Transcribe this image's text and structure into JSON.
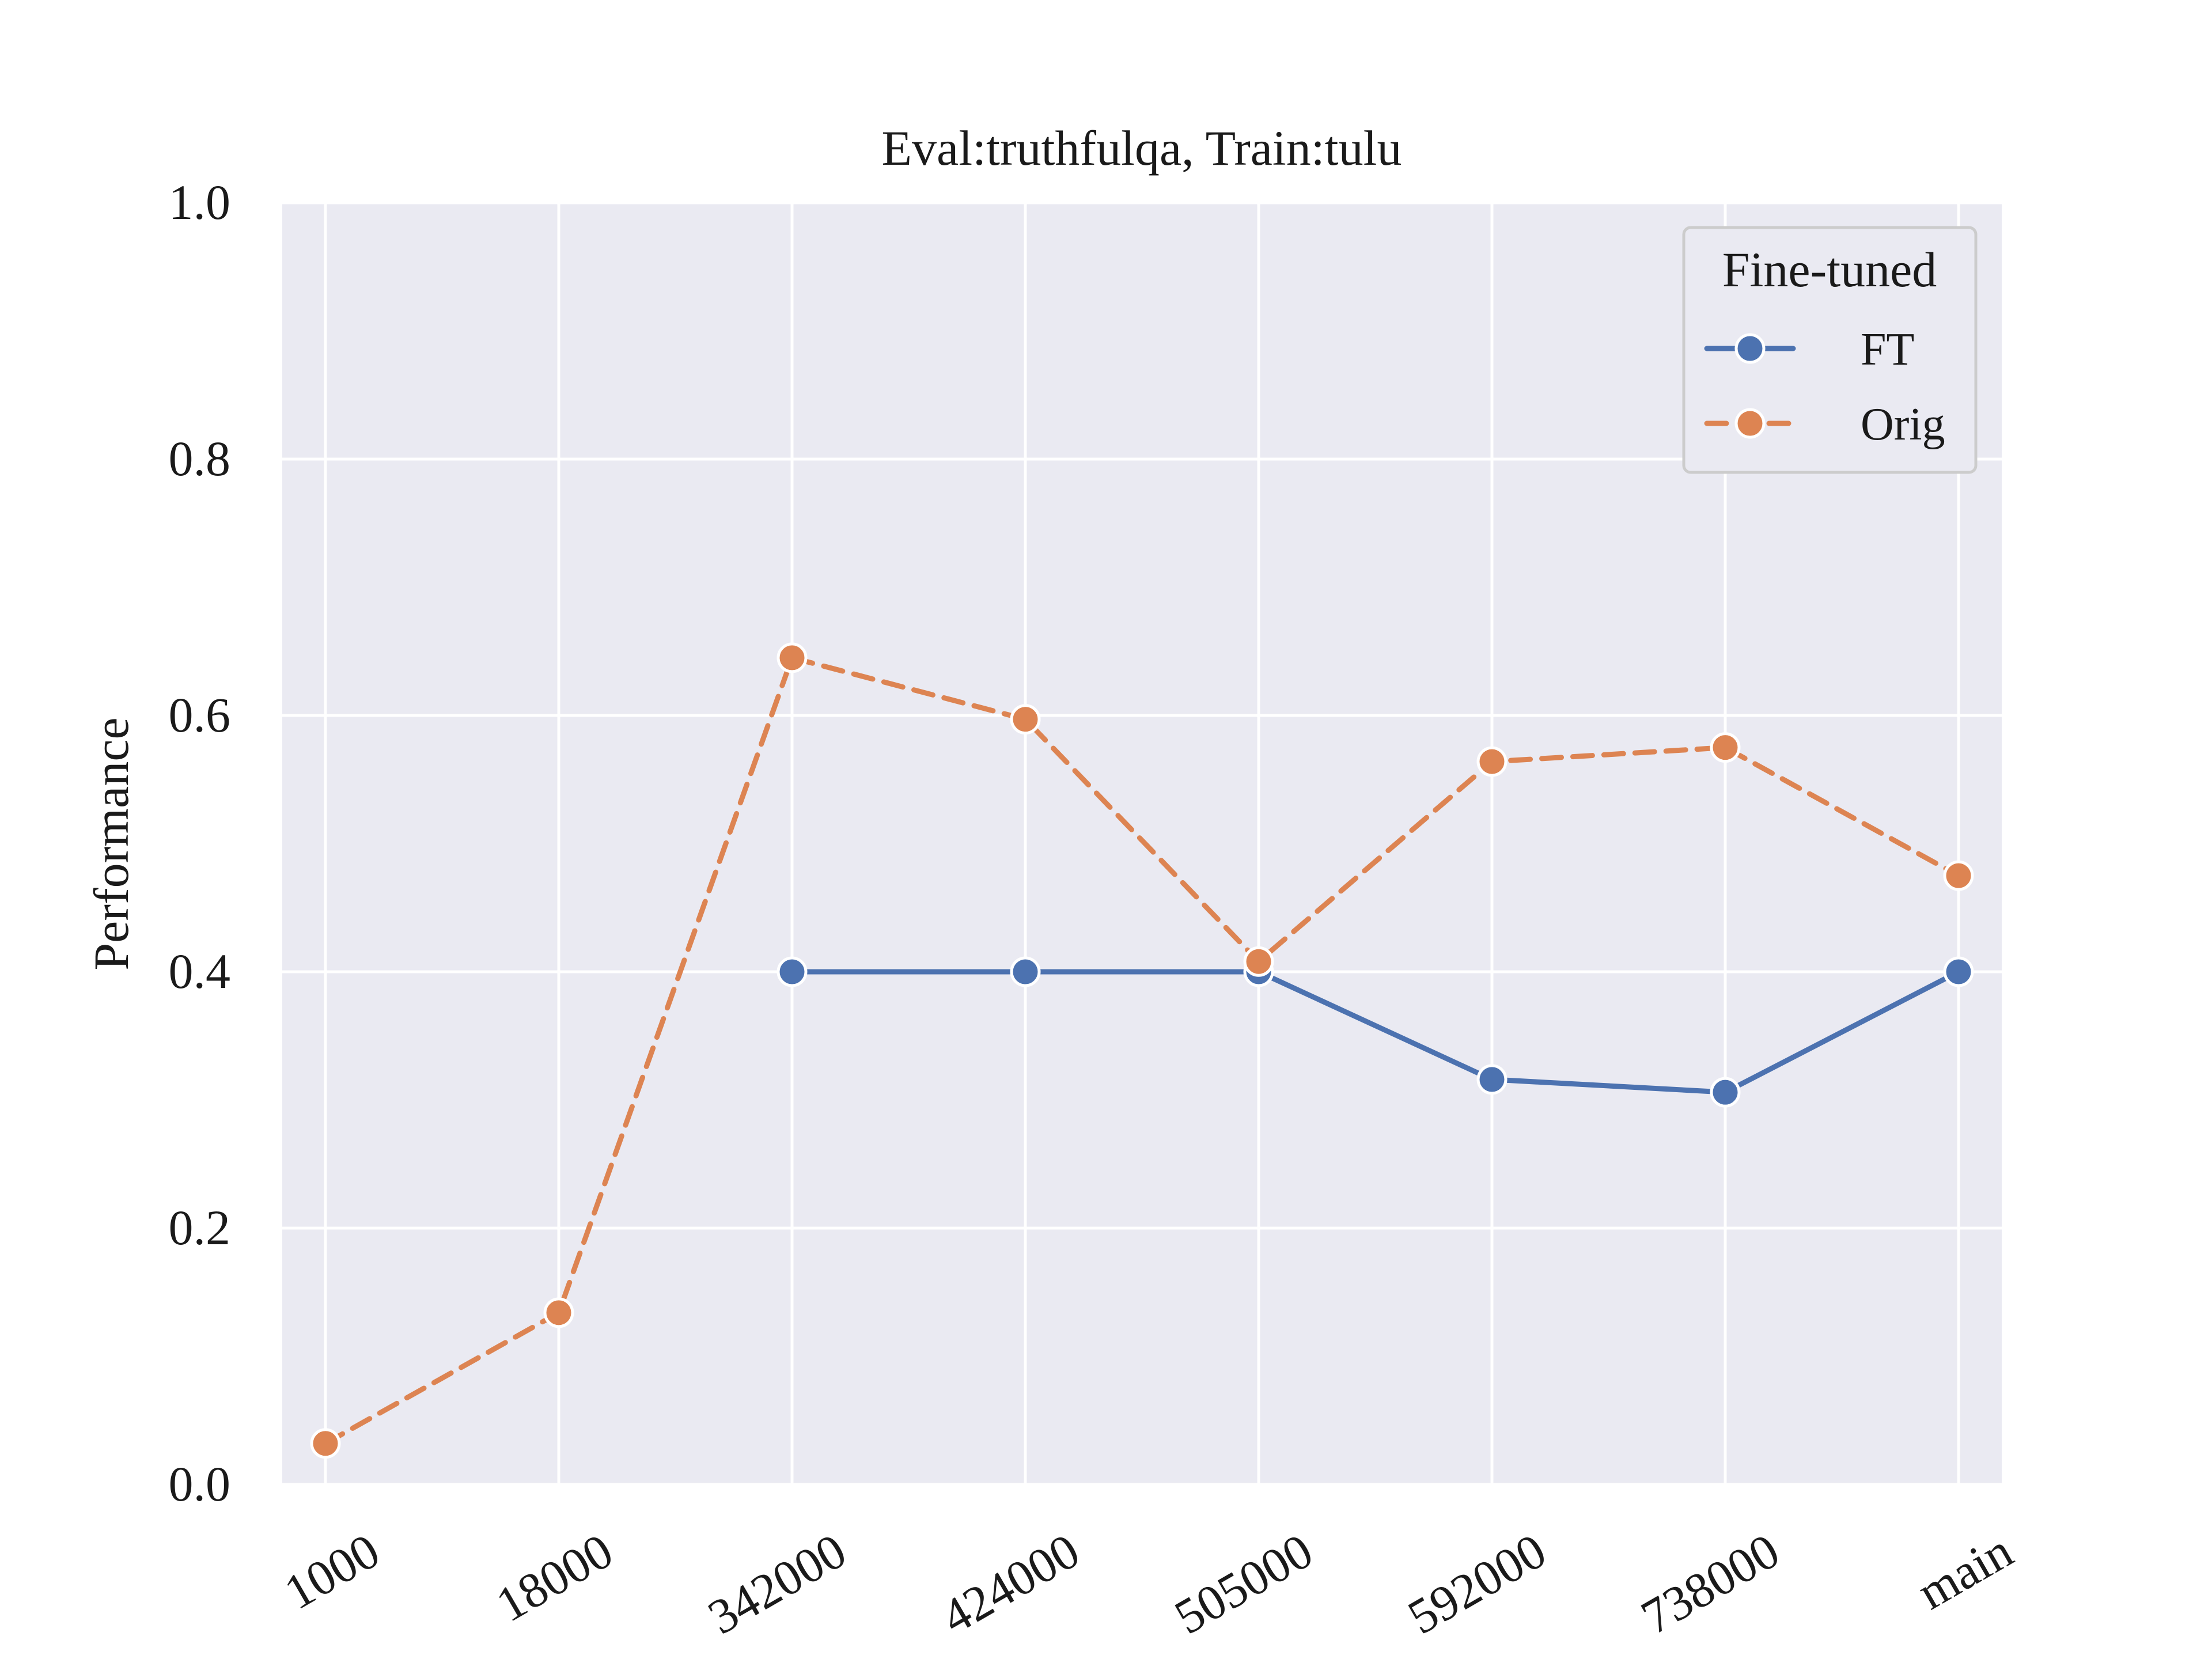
{
  "chart_data": {
    "type": "line",
    "title": "Eval:truthfulqa, Train:tulu",
    "xlabel": "",
    "ylabel": "Performance",
    "categories": [
      "1000",
      "18000",
      "342000",
      "424000",
      "505000",
      "592000",
      "738000",
      "main"
    ],
    "ylim": [
      0.0,
      1.0
    ],
    "yticks": [
      "0.0",
      "0.2",
      "0.4",
      "0.6",
      "0.8",
      "1.0"
    ],
    "grid": true,
    "legend": {
      "title": "Fine-tuned",
      "position": "top-right"
    },
    "series": [
      {
        "name": "FT",
        "color": "#4c72b0",
        "style": "solid",
        "values": [
          null,
          null,
          0.4,
          0.4,
          0.4,
          0.316,
          0.306,
          0.4
        ]
      },
      {
        "name": "Orig",
        "color": "#dd8452",
        "style": "dashed",
        "values": [
          0.032,
          0.134,
          0.645,
          0.597,
          0.408,
          0.564,
          0.575,
          0.475
        ]
      }
    ],
    "colors": {
      "plot_background": "#eaeaf2",
      "grid": "#ffffff"
    }
  }
}
